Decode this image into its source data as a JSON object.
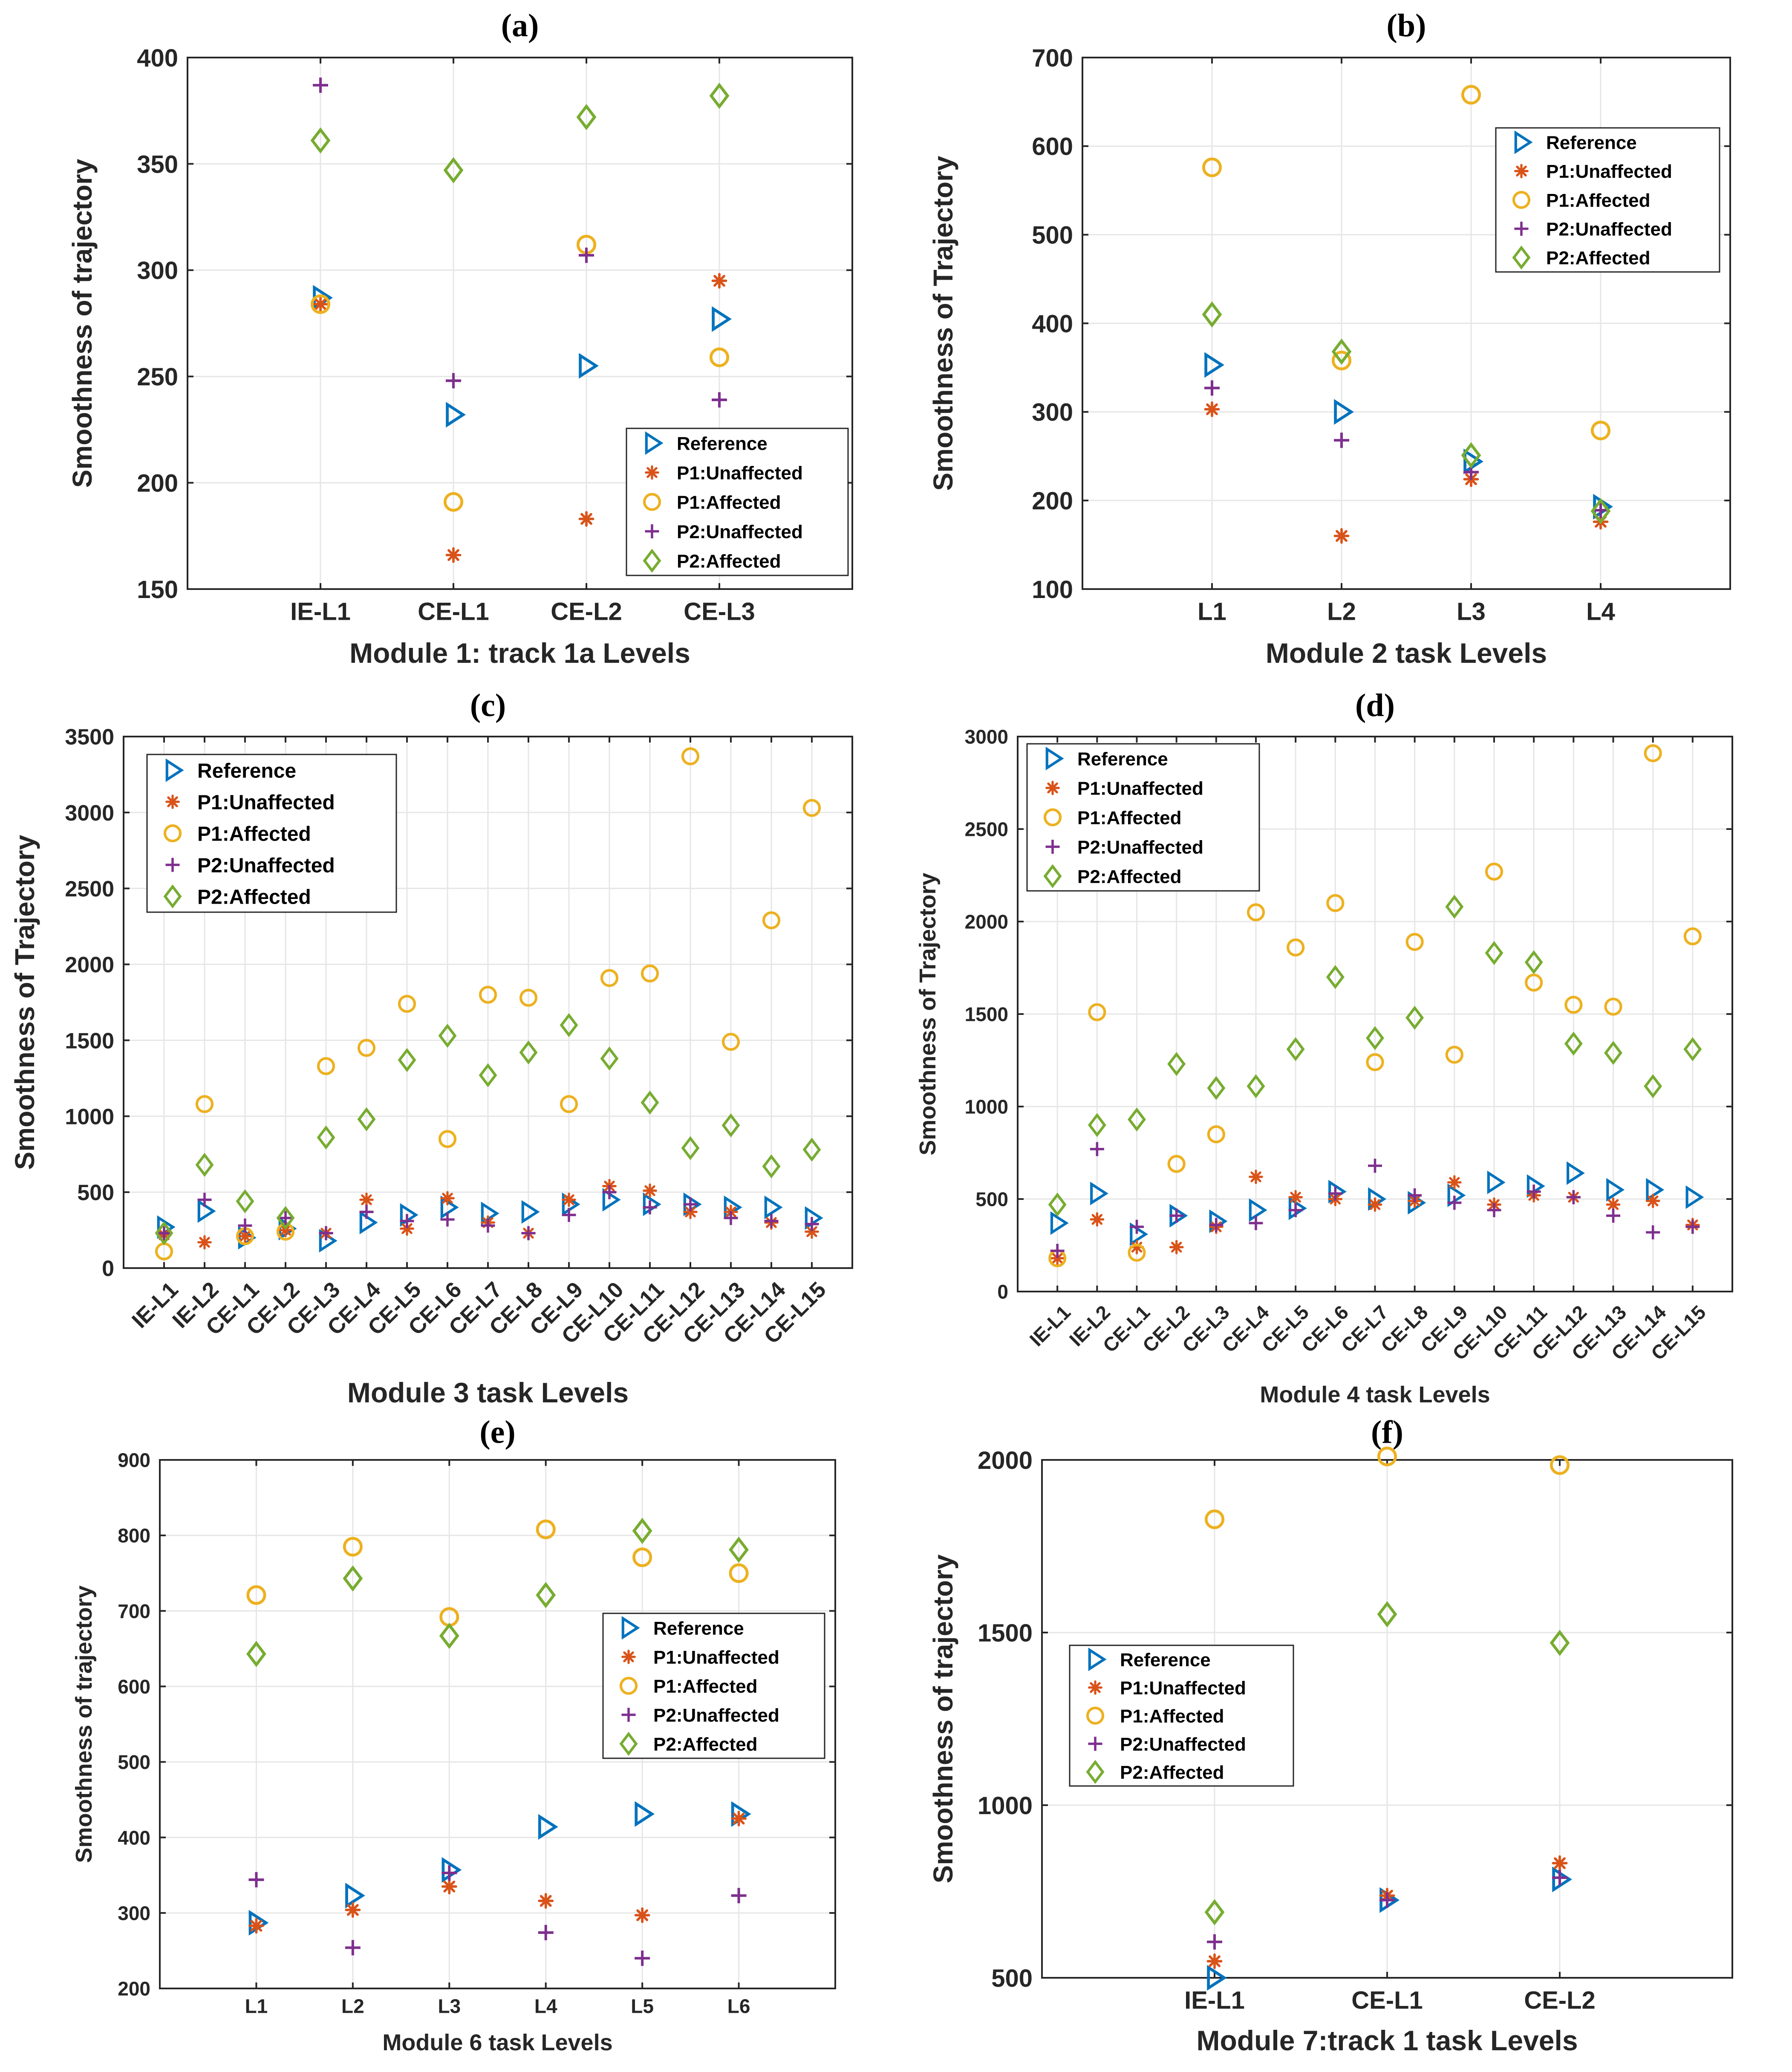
{
  "figure": {
    "series_names": [
      "Reference",
      "P1:Unaffected",
      "P1:Affected",
      "P2:Unaffected",
      "P2:Affected"
    ],
    "series_colors": [
      "#0072BD",
      "#D95319",
      "#EDB120",
      "#7E2F8E",
      "#77AC30"
    ],
    "series_markers": [
      "triangle-right",
      "asterisk",
      "circle",
      "plus",
      "diamond"
    ]
  },
  "chart_data": [
    {
      "panel": "(a)",
      "type": "scatter",
      "categories": [
        "IE-L1",
        "CE-L1",
        "CE-L2",
        "CE-L3"
      ],
      "xlabel": "Module 1: track 1a Levels",
      "ylabel": "Smoothness of trajectory",
      "ylim": [
        150,
        400
      ],
      "yticks": [
        150,
        200,
        250,
        300,
        350,
        400
      ],
      "legend_position": "bottom-right",
      "series": [
        {
          "name": "Reference",
          "values": [
            287,
            232,
            255,
            277
          ]
        },
        {
          "name": "P1:Unaffected",
          "values": [
            284,
            166,
            183,
            295
          ]
        },
        {
          "name": "P1:Affected",
          "values": [
            284,
            191,
            312,
            259
          ]
        },
        {
          "name": "P2:Unaffected",
          "values": [
            387,
            248,
            307,
            239
          ]
        },
        {
          "name": "P2:Affected",
          "values": [
            361,
            347,
            372,
            382
          ]
        }
      ]
    },
    {
      "panel": "(b)",
      "type": "scatter",
      "categories": [
        "L1",
        "L2",
        "L3",
        "L4"
      ],
      "xlabel": "Module 2 task Levels",
      "ylabel": "Smoothness of Trajectory",
      "ylim": [
        100,
        700
      ],
      "yticks": [
        100,
        200,
        300,
        400,
        500,
        600,
        700
      ],
      "legend_position": "top-right",
      "series": [
        {
          "name": "Reference",
          "values": [
            353,
            300,
            244,
            193
          ]
        },
        {
          "name": "P1:Unaffected",
          "values": [
            303,
            160,
            224,
            176
          ]
        },
        {
          "name": "P1:Affected",
          "values": [
            576,
            358,
            658,
            279
          ]
        },
        {
          "name": "P2:Unaffected",
          "values": [
            327,
            268,
            232,
            189
          ]
        },
        {
          "name": "P2:Affected",
          "values": [
            410,
            368,
            251,
            188
          ]
        }
      ]
    },
    {
      "panel": "(c)",
      "type": "scatter",
      "categories": [
        "IE-L1",
        "IE-L2",
        "CE-L1",
        "CE-L2",
        "CE-L3",
        "CE-L4",
        "CE-L5",
        "CE-L6",
        "CE-L7",
        "CE-L8",
        "CE-L9",
        "CE-L10",
        "CE-L11",
        "CE-L12",
        "CE-L13",
        "CE-L14",
        "CE-L15"
      ],
      "xlabel": "Module 3 task Levels",
      "ylabel": "Smoothness of Trajectory",
      "ylim": [
        0,
        3500
      ],
      "yticks": [
        0,
        500,
        1000,
        1500,
        2000,
        2500,
        3000,
        3500
      ],
      "legend_position": "top-left",
      "series": [
        {
          "name": "Reference",
          "values": [
            270,
            375,
            200,
            260,
            180,
            300,
            350,
            400,
            360,
            370,
            420,
            450,
            420,
            420,
            400,
            400,
            330
          ]
        },
        {
          "name": "P1:Unaffected",
          "values": [
            220,
            170,
            210,
            250,
            230,
            450,
            260,
            460,
            300,
            230,
            450,
            540,
            510,
            370,
            370,
            300,
            240
          ]
        },
        {
          "name": "P1:Affected",
          "values": [
            110,
            1080,
            210,
            240,
            1330,
            1450,
            1740,
            850,
            1800,
            1780,
            1080,
            1910,
            1940,
            3370,
            1490,
            2290,
            3030
          ]
        },
        {
          "name": "P2:Unaffected",
          "values": [
            230,
            450,
            280,
            330,
            230,
            370,
            310,
            320,
            280,
            230,
            350,
            500,
            400,
            420,
            330,
            310,
            290
          ]
        },
        {
          "name": "P2:Affected",
          "values": [
            230,
            680,
            440,
            330,
            860,
            980,
            1370,
            1530,
            1270,
            1420,
            1600,
            1380,
            1090,
            790,
            940,
            670,
            780
          ]
        }
      ]
    },
    {
      "panel": "(d)",
      "type": "scatter",
      "categories": [
        "IE-L1",
        "IE-L2",
        "CE-L1",
        "CE-L2",
        "CE-L3",
        "CE-L4",
        "CE-L5",
        "CE-L6",
        "CE-L7",
        "CE-L8",
        "CE-L9",
        "CE-L10",
        "CE-L11",
        "CE-L12",
        "CE-L13",
        "CE-L14",
        "CE-L15"
      ],
      "xlabel": "Module 4 task Levels",
      "ylabel": "Smoothness of Trajectory",
      "ylim": [
        0,
        3000
      ],
      "yticks": [
        0,
        500,
        1000,
        1500,
        2000,
        2500,
        3000
      ],
      "legend_position": "top-left",
      "series": [
        {
          "name": "Reference",
          "values": [
            370,
            530,
            310,
            410,
            380,
            440,
            450,
            540,
            500,
            480,
            520,
            590,
            570,
            640,
            550,
            550,
            510
          ]
        },
        {
          "name": "P1:Unaffected",
          "values": [
            180,
            390,
            240,
            240,
            350,
            620,
            510,
            500,
            470,
            490,
            590,
            470,
            520,
            510,
            470,
            490,
            360
          ]
        },
        {
          "name": "P1:Affected",
          "values": [
            180,
            1510,
            210,
            690,
            850,
            2050,
            1860,
            2100,
            1240,
            1890,
            1280,
            2270,
            1670,
            1550,
            1540,
            2910,
            1920
          ]
        },
        {
          "name": "P2:Unaffected",
          "values": [
            220,
            770,
            350,
            410,
            360,
            370,
            440,
            530,
            680,
            520,
            480,
            440,
            540,
            510,
            410,
            320,
            350
          ]
        },
        {
          "name": "P2:Affected",
          "values": [
            470,
            900,
            930,
            1230,
            1100,
            1110,
            1310,
            1700,
            1370,
            1480,
            2080,
            1830,
            1780,
            1340,
            1290,
            1110,
            1310
          ]
        }
      ]
    },
    {
      "panel": "(e)",
      "type": "scatter",
      "categories": [
        "L1",
        "L2",
        "L3",
        "L4",
        "L5",
        "L6"
      ],
      "xlabel": "Module 6 task Levels",
      "ylabel": "Smoothness of trajectory",
      "ylim": [
        200,
        900
      ],
      "yticks": [
        200,
        300,
        400,
        500,
        600,
        700,
        800,
        900
      ],
      "legend_position": "center-right",
      "series": [
        {
          "name": "Reference",
          "values": [
            287,
            323,
            357,
            414,
            431,
            431
          ]
        },
        {
          "name": "P1:Unaffected",
          "values": [
            283,
            304,
            335,
            316,
            297,
            425
          ]
        },
        {
          "name": "P1:Affected",
          "values": [
            721,
            785,
            692,
            808,
            771,
            750
          ]
        },
        {
          "name": "P2:Unaffected",
          "values": [
            344,
            254,
            353,
            274,
            240,
            323
          ]
        },
        {
          "name": "P2:Affected",
          "values": [
            643,
            743,
            667,
            721,
            806,
            781
          ]
        }
      ]
    },
    {
      "panel": "(f)",
      "type": "scatter",
      "categories": [
        "IE-L1",
        "CE-L1",
        "CE-L2"
      ],
      "xlabel": "Module 7:track 1 task Levels",
      "ylabel": "Smoothness of trajectory",
      "ylim": [
        500,
        2000
      ],
      "yticks": [
        500,
        1000,
        1500,
        2000
      ],
      "legend_position": "center-left",
      "series": [
        {
          "name": "Reference",
          "values": [
            500,
            725,
            785
          ]
        },
        {
          "name": "P1:Unaffected",
          "values": [
            548,
            738,
            832
          ]
        },
        {
          "name": "P1:Affected",
          "values": [
            1828,
            2010,
            1985
          ]
        },
        {
          "name": "P2:Unaffected",
          "values": [
            604,
            725,
            790
          ]
        },
        {
          "name": "P2:Affected",
          "values": [
            690,
            1553,
            1470
          ]
        }
      ]
    }
  ]
}
